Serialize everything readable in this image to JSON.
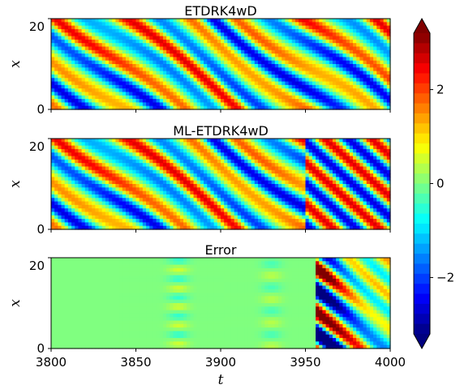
{
  "chart_data": {
    "type": "heatmap",
    "panels": [
      {
        "title": "ETDRK4wD",
        "field": "solution",
        "ylabel": "x",
        "yticks": [
          "0",
          "20"
        ]
      },
      {
        "title": "ML-ETDRK4wD",
        "field": "ml_solution",
        "ylabel": "x",
        "yticks": [
          "0",
          "20"
        ]
      },
      {
        "title": "Error",
        "field": "error",
        "ylabel": "x",
        "yticks": [
          "0",
          "20"
        ]
      }
    ],
    "xlabel": "t",
    "xlim": [
      3800,
      4000
    ],
    "ylim": [
      0,
      22
    ],
    "xticks": [
      "3800",
      "3850",
      "3900",
      "3950",
      "4000"
    ],
    "colorbar": {
      "range": [
        -3.2,
        3.2
      ],
      "ticks": [
        "2",
        "0",
        "−2"
      ],
      "tick_values": [
        2,
        0,
        -2
      ],
      "colormap": "jet",
      "extend": "both"
    },
    "error_divergence_start_t": 3955
  }
}
